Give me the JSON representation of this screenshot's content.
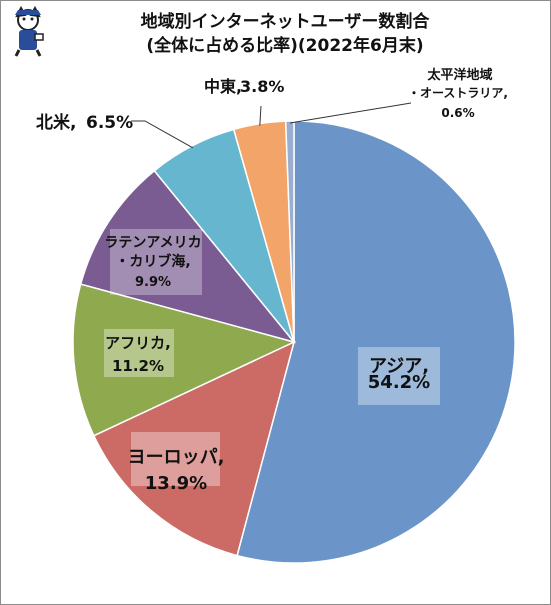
{
  "title": {
    "line1": "地域別インターネットユーザー数割合",
    "line2": "(全体に占める比率)(2022年6月末)"
  },
  "chart_data": {
    "type": "pie",
    "start_angle_deg": 0,
    "direction": "clockwise",
    "slices": [
      {
        "name": "アジア",
        "value": 54.2,
        "label": "アジア,",
        "value_label": "54.2%",
        "color": "#6b95c8"
      },
      {
        "name": "ヨーロッパ",
        "value": 13.9,
        "label": "ヨーロッパ,",
        "value_label": "13.9%",
        "color": "#cc6b66"
      },
      {
        "name": "アフリカ",
        "value": 11.2,
        "label": "アフリカ,",
        "value_label": "11.2%",
        "color": "#8fa94f"
      },
      {
        "name": "ラテンアメリカ・カリブ海",
        "value": 9.9,
        "label": "ラテンアメリカ",
        "label2": "・カリブ海,",
        "value_label": "9.9%",
        "color": "#7a5c93"
      },
      {
        "name": "北米",
        "value": 6.5,
        "label": "北米,",
        "value_label": "6.5%",
        "color": "#67b6d0"
      },
      {
        "name": "中東",
        "value": 3.8,
        "label": "中東,",
        "value_label": "3.8%",
        "color": "#f2a469"
      },
      {
        "name": "太平洋地域・オーストラリア",
        "value": 0.6,
        "label": "太平洋地域",
        "label2": "・オーストラリア,",
        "value_label": "0.6%",
        "color": "#9aaed2"
      }
    ]
  }
}
